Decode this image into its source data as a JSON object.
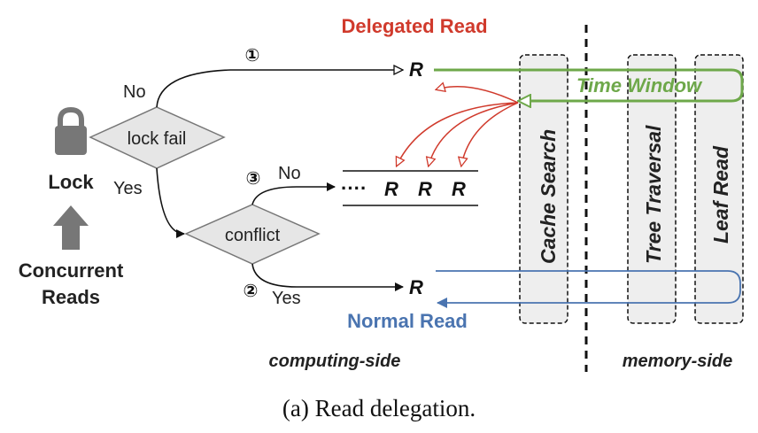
{
  "labels": {
    "delegated_read": "Delegated Read",
    "normal_read": "Normal Read",
    "time_window": "Time Window",
    "lock": "Lock",
    "concurrent_reads_line1": "Concurrent",
    "concurrent_reads_line2": "Reads",
    "lock_fail": "lock fail",
    "conflict": "conflict",
    "no_top": "No",
    "yes_left": "Yes",
    "no_mid": "No",
    "yes_bottom": "Yes",
    "step1": "①",
    "step2": "②",
    "step3": "③",
    "r_top": "R",
    "r_bottom": "R",
    "queue_dots": "····",
    "queue_r1": "R",
    "queue_r2": "R",
    "queue_r3": "R",
    "cache_search": "Cache Search",
    "tree_traversal": "Tree Traversal",
    "leaf_read": "Leaf Read",
    "computing_side": "computing-side",
    "memory_side": "memory-side",
    "caption": "(a) Read delegation."
  },
  "colors": {
    "delegated": "#d03a2c",
    "normal": "#4a74b0",
    "time_window": "#6ea84a",
    "diamond_fill": "#e6e6e6",
    "column_fill": "#eeeeee",
    "lock_icon": "#777777",
    "text": "#222222"
  }
}
